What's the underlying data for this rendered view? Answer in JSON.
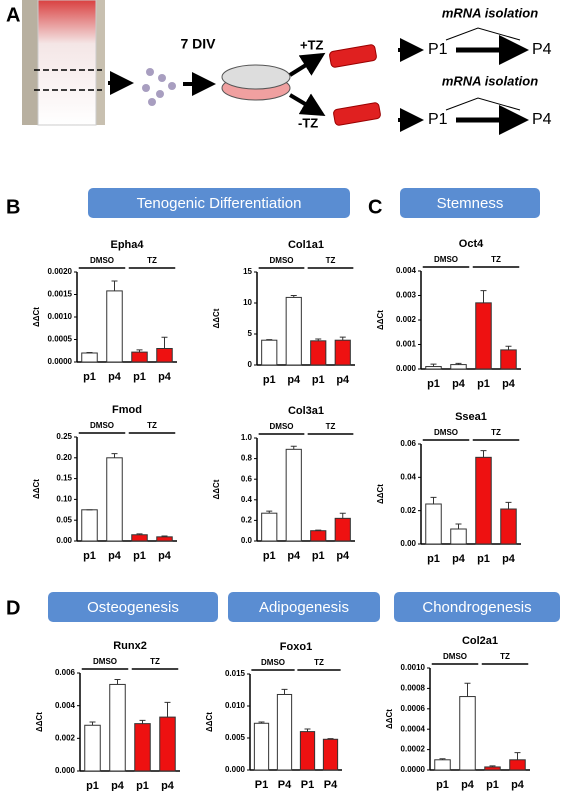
{
  "figure": {
    "panels": [
      "A",
      "B",
      "C",
      "D"
    ],
    "schematic": {
      "days": "7 DIV",
      "plus": "+TZ",
      "minus": "-TZ",
      "isolation": [
        "mRNA isolation",
        "mRNA isolation"
      ],
      "passages": [
        [
          "P1",
          "P4"
        ],
        [
          "P1",
          "P4"
        ]
      ]
    },
    "headers": [
      "Tenogenic Differentiation",
      "Stemness",
      "Osteogenesis",
      "Adipogenesis",
      "Chondrogenesis"
    ]
  },
  "chart_data": [
    {
      "type": "bar",
      "title": "Epha4",
      "y_label": "ΔΔCt",
      "groups": [
        "DMSO",
        "TZ"
      ],
      "categories": [
        "p1",
        "p4",
        "p1",
        "p4"
      ],
      "values": [
        0.0002,
        0.00158,
        0.00022,
        0.0003
      ],
      "errors": [
        1e-05,
        0.00022,
        5e-05,
        0.00025
      ],
      "colors": [
        "#ffffff",
        "#ffffff",
        "#ee1111",
        "#ee1111"
      ],
      "ylim": [
        0,
        0.002
      ],
      "yticks": [
        {
          "value": 0,
          "label": "0.0000"
        },
        0.0005,
        {
          "value": 0.001,
          "label": "0.0010"
        },
        0.0015,
        {
          "value": 0.002,
          "label": "0.0020"
        }
      ]
    },
    {
      "type": "bar",
      "title": "Col1a1",
      "y_label": "ΔΔCt",
      "groups": [
        "DMSO",
        "TZ"
      ],
      "categories": [
        "p1",
        "p4",
        "p1",
        "p4"
      ],
      "values": [
        4.0,
        10.9,
        3.9,
        4.0
      ],
      "errors": [
        0.1,
        0.3,
        0.3,
        0.5
      ],
      "colors": [
        "#ffffff",
        "#ffffff",
        "#ee1111",
        "#ee1111"
      ],
      "ylim": [
        0,
        15
      ],
      "yticks": [
        0,
        5,
        10,
        15
      ]
    },
    {
      "type": "bar",
      "title": "Oct4",
      "y_label": "ΔΔCt",
      "groups": [
        "DMSO",
        "TZ"
      ],
      "categories": [
        "p1",
        "p4",
        "p1",
        "p4"
      ],
      "values": [
        0.0001,
        0.00018,
        0.0027,
        0.00078
      ],
      "errors": [
        0.0001,
        5e-05,
        0.0005,
        0.00015
      ],
      "colors": [
        "#ffffff",
        "#ffffff",
        "#ee1111",
        "#ee1111"
      ],
      "ylim": [
        0,
        0.004
      ],
      "yticks": [
        {
          "value": 0,
          "label": "0.000"
        },
        0.001,
        0.002,
        0.003,
        0.004
      ]
    },
    {
      "type": "bar",
      "title": "Fmod",
      "y_label": "ΔΔCt",
      "groups": [
        "DMSO",
        "TZ"
      ],
      "categories": [
        "p1",
        "p4",
        "p1",
        "p4"
      ],
      "values": [
        0.075,
        0.2,
        0.015,
        0.01
      ],
      "errors": [
        0,
        0.01,
        0.002,
        0.002
      ],
      "colors": [
        "#ffffff",
        "#ffffff",
        "#ee1111",
        "#ee1111"
      ],
      "ylim": [
        0,
        0.25
      ],
      "yticks": [
        {
          "value": 0,
          "label": "0.00"
        },
        0.05,
        {
          "value": 0.1,
          "label": "0.10"
        },
        0.15,
        {
          "value": 0.2,
          "label": "0.20"
        },
        0.25
      ]
    },
    {
      "type": "bar",
      "title": "Col3a1",
      "y_label": "ΔΔCt",
      "groups": [
        "DMSO",
        "TZ"
      ],
      "categories": [
        "p1",
        "p4",
        "p1",
        "p4"
      ],
      "values": [
        0.27,
        0.89,
        0.1,
        0.22
      ],
      "errors": [
        0.02,
        0.03,
        0.005,
        0.05
      ],
      "colors": [
        "#ffffff",
        "#ffffff",
        "#ee1111",
        "#ee1111"
      ],
      "ylim": [
        0,
        1.0
      ],
      "yticks": [
        {
          "value": 0,
          "label": "0.0"
        },
        0.2,
        0.4,
        0.6,
        0.8,
        {
          "value": 1,
          "label": "1.0"
        }
      ]
    },
    {
      "type": "bar",
      "title": "Ssea1",
      "y_label": "ΔΔCt",
      "groups": [
        "DMSO",
        "TZ"
      ],
      "categories": [
        "p1",
        "p4",
        "p1",
        "p4"
      ],
      "values": [
        0.024,
        0.009,
        0.052,
        0.021
      ],
      "errors": [
        0.004,
        0.003,
        0.004,
        0.004
      ],
      "colors": [
        "#ffffff",
        "#ffffff",
        "#ee1111",
        "#ee1111"
      ],
      "ylim": [
        0,
        0.06
      ],
      "yticks": [
        {
          "value": 0,
          "label": "0.00"
        },
        0.02,
        0.04,
        0.06
      ]
    },
    {
      "type": "bar",
      "title": "Runx2",
      "y_label": "ΔΔCt",
      "groups": [
        "DMSO",
        "TZ"
      ],
      "categories": [
        "p1",
        "p4",
        "p1",
        "p4"
      ],
      "values": [
        0.0028,
        0.0053,
        0.0029,
        0.0033
      ],
      "errors": [
        0.0002,
        0.0003,
        0.0002,
        0.0009
      ],
      "colors": [
        "#ffffff",
        "#ffffff",
        "#ee1111",
        "#ee1111"
      ],
      "ylim": [
        0,
        0.006
      ],
      "yticks": [
        {
          "value": 0,
          "label": "0.000"
        },
        0.002,
        0.004,
        0.006
      ]
    },
    {
      "type": "bar",
      "title": "Foxo1",
      "y_label": "ΔΔCt",
      "groups": [
        "DMSO",
        "TZ"
      ],
      "categories": [
        "P1",
        "P4",
        "P1",
        "P4"
      ],
      "values": [
        0.0073,
        0.0118,
        0.006,
        0.0048
      ],
      "errors": [
        0.0002,
        0.0008,
        0.0004,
        0.0001
      ],
      "colors": [
        "#ffffff",
        "#ffffff",
        "#ee1111",
        "#ee1111"
      ],
      "ylim": [
        0,
        0.015
      ],
      "yticks": [
        {
          "value": 0,
          "label": "0.000"
        },
        0.005,
        {
          "value": 0.01,
          "label": "0.010"
        },
        0.015
      ]
    },
    {
      "type": "bar",
      "title": "Col2a1",
      "y_label": "ΔΔCt",
      "groups": [
        "DMSO",
        "TZ"
      ],
      "categories": [
        "p1",
        "p4",
        "p1",
        "p4"
      ],
      "values": [
        0.0001,
        0.00072,
        3e-05,
        0.0001
      ],
      "errors": [
        1e-05,
        0.00013,
        1e-05,
        7e-05
      ],
      "colors": [
        "#ffffff",
        "#ffffff",
        "#ee1111",
        "#ee1111"
      ],
      "ylim": [
        0,
        0.001
      ],
      "yticks": [
        {
          "value": 0,
          "label": "0.0000"
        },
        0.0002,
        0.0004,
        0.0006,
        0.0008,
        {
          "value": 0.001,
          "label": "0.0010"
        }
      ]
    }
  ]
}
